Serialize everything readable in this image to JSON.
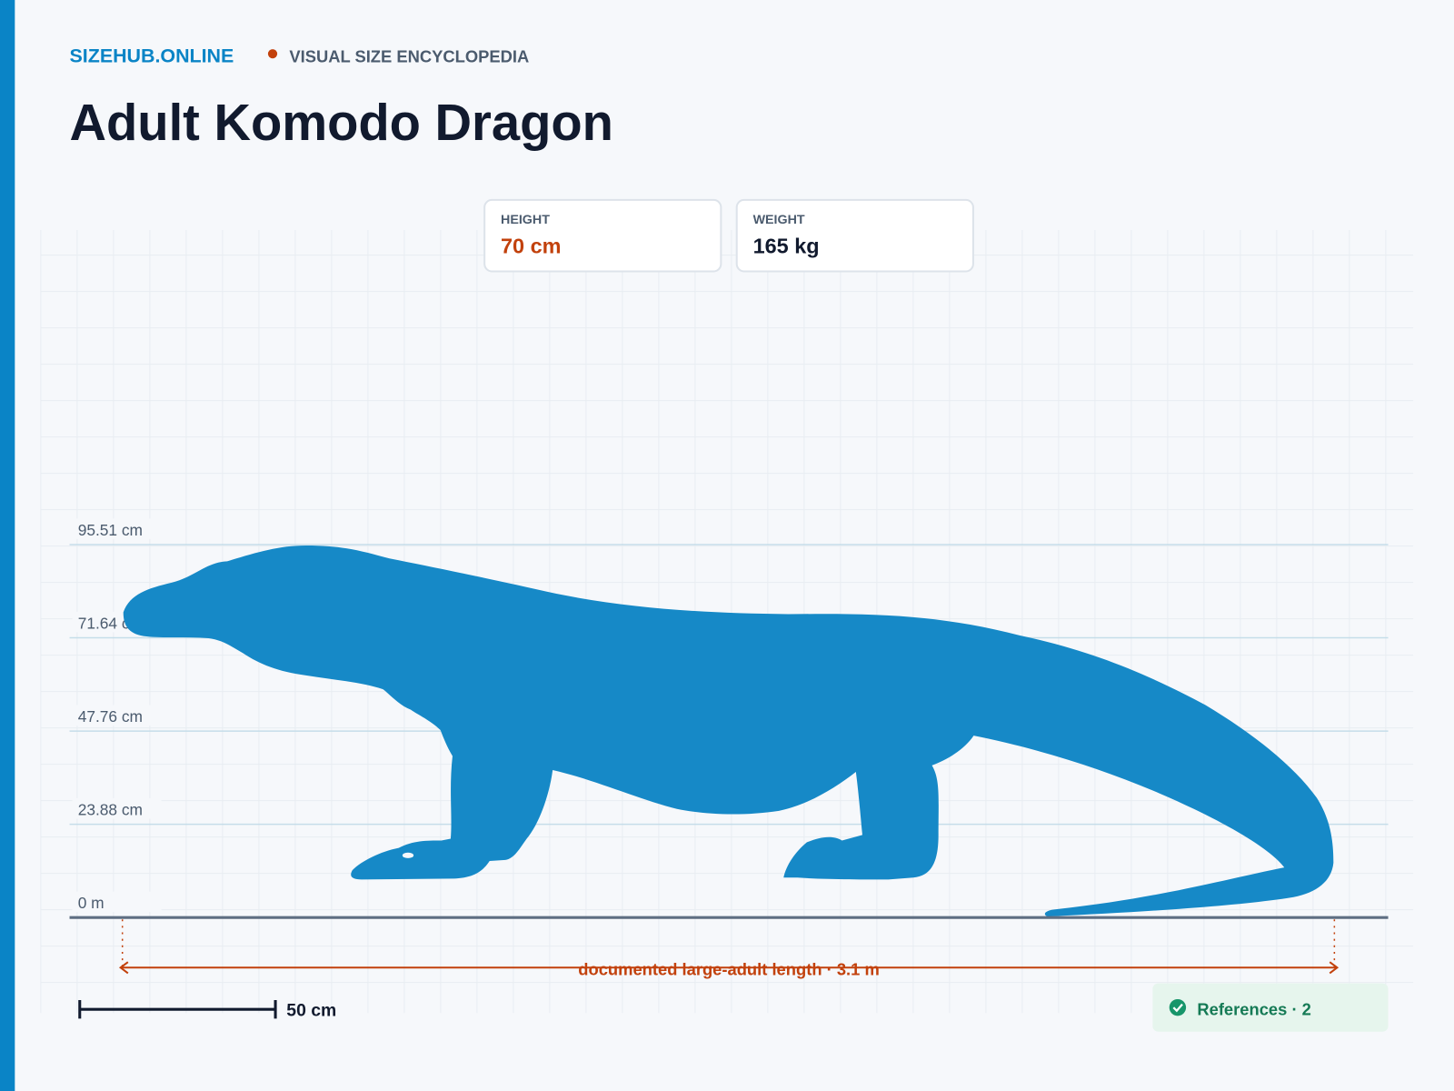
{
  "header": {
    "brand": "SIZEHUB.ONLINE",
    "tagline": "VISUAL SIZE ENCYCLOPEDIA",
    "title": "Adult Komodo Dragon"
  },
  "stats": [
    {
      "label": "HEIGHT",
      "value": "70 cm"
    },
    {
      "label": "WEIGHT",
      "value": "165 kg"
    }
  ],
  "scale_lines": [
    "95.51 cm",
    "71.64 cm",
    "47.76 cm",
    "23.88 cm",
    "0 m"
  ],
  "length_label": "documented large-adult length · 3.1 m",
  "scale_bar": "50 cm",
  "references": "References · 2"
}
